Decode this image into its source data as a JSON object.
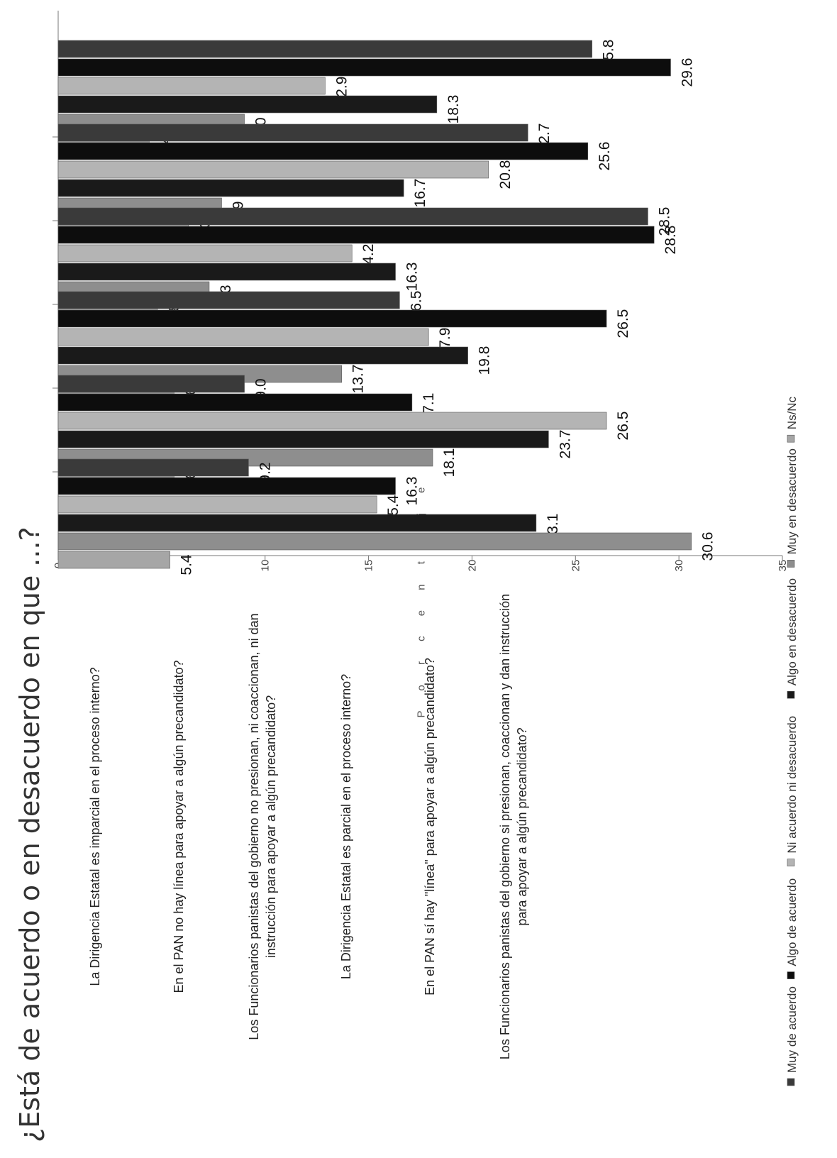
{
  "chart_data": {
    "type": "bar",
    "title": "¿Está de acuerdo o en desacuerdo en que ...?",
    "ylabel": "P o r c e n t a j e",
    "ylim": [
      0,
      35
    ],
    "yticks": [
      0,
      5,
      10,
      15,
      20,
      25,
      30,
      35
    ],
    "legend_position": "bottom",
    "categories": [
      [
        "La Dirigencia Estatal es imparcial en el proceso interno?"
      ],
      [
        "En el PAN no hay línea para apoyar a algún precandidato?"
      ],
      [
        "Los Funcionarios panistas del gobierno no presionan, ni coaccionan, ni dan",
        "instrucción para apoyar a algún precandidato?"
      ],
      [
        "La Dirigencia Estatal es parcial en el proceso interno?"
      ],
      [
        "En el PAN sí hay \"línea\" para apoyar a algún precandidato?"
      ],
      [
        "Los Funcionarios panistas del gobierno si presionan, coaccionan y dan instrucción",
        "para apoyar a algún precandidato?"
      ]
    ],
    "series": [
      {
        "name": "Muy de acuerdo",
        "color": "#3a3a3a",
        "values": [
          25.8,
          22.7,
          28.5,
          16.5,
          9.0,
          9.2
        ]
      },
      {
        "name": "Algo de acuerdo",
        "color": "#0d0d0d",
        "values": [
          29.6,
          25.6,
          28.8,
          26.5,
          17.1,
          16.3
        ]
      },
      {
        "name": "Ni acuerdo ni desacuerdo",
        "color": "#b4b4b4",
        "values": [
          12.9,
          20.8,
          14.2,
          17.9,
          26.5,
          15.4
        ]
      },
      {
        "name": "Algo en desacuerdo",
        "color": "#1a1a1a",
        "values": [
          18.3,
          16.7,
          16.3,
          19.8,
          23.7,
          23.1
        ]
      },
      {
        "name": "Muy en desacuerdo",
        "color": "#8e8e8e",
        "values": [
          9.0,
          7.9,
          7.3,
          13.7,
          18.1,
          30.6
        ]
      },
      {
        "name": "Ns/Nc",
        "color": "#a6a6a6",
        "values": [
          4.4,
          6.3,
          4.8,
          5.6,
          5.6,
          5.4
        ]
      }
    ]
  }
}
